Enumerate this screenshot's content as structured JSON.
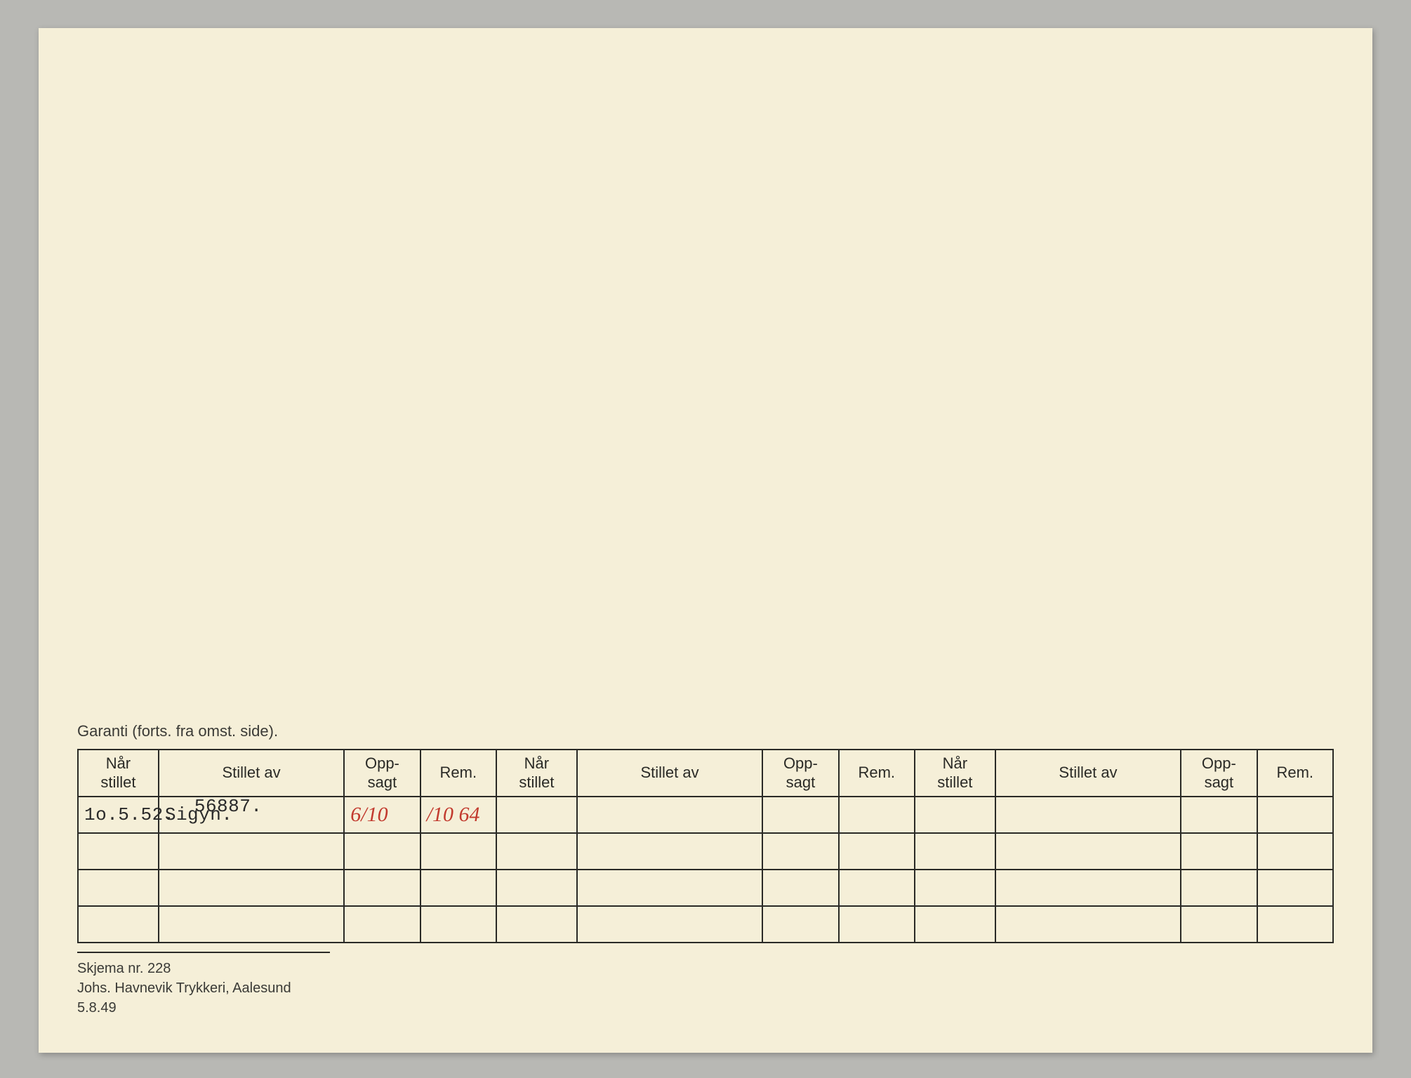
{
  "caption": "Garanti (forts. fra omst. side).",
  "columns": {
    "nar_stillet": "Når\nstillet",
    "stillet_av": "Stillet av",
    "opp_sagt": "Opp-\nsagt",
    "rem": "Rem."
  },
  "rows": [
    {
      "nar_stillet": "1o.5.52.",
      "stillet_av_overflow": "56887.",
      "stillet_av": "Sigyn.",
      "opp_sagt": "6/10",
      "rem": "/10 64"
    }
  ],
  "footer": {
    "line1": "Skjema nr. 228",
    "line2": "Johs. Havnevik Trykkeri, Aalesund 5.8.49"
  },
  "blank_rows": 3,
  "column_groups": 3,
  "colors": {
    "paper": "#f5efd8",
    "border": "#2a2a26",
    "text": "#3a3a36",
    "handwritten": "#c23a2e",
    "background": "#b8b8b4"
  }
}
